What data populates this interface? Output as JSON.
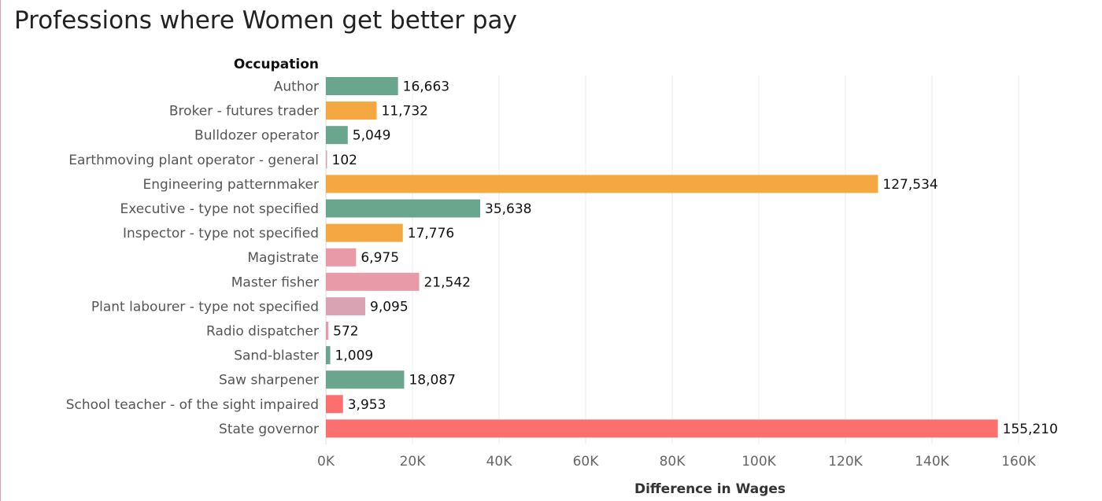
{
  "title": "Professions where Women get better pay",
  "chart_data": {
    "type": "bar",
    "orientation": "horizontal",
    "title": "Professions where Women get better pay",
    "ylabel": "Occupation",
    "xlabel": "Difference in Wages",
    "categories": [
      "Author",
      "Broker - futures trader",
      "Bulldozer operator",
      "Earthmoving plant operator - general",
      "Engineering patternmaker",
      "Executive - type not specified",
      "Inspector - type not specified",
      "Magistrate",
      "Master fisher",
      "Plant labourer - type not specified",
      "Radio dispatcher",
      "Sand-blaster",
      "Saw sharpener",
      "School teacher - of the sight impaired",
      "State governor"
    ],
    "values": [
      16663,
      11732,
      5049,
      102,
      127534,
      35638,
      17776,
      6975,
      21542,
      9095,
      572,
      1009,
      18087,
      3953,
      155210
    ],
    "value_labels": [
      "16,663",
      "11,732",
      "5,049",
      "102",
      "127,534",
      "35,638",
      "17,776",
      "6,975",
      "21,542",
      "9,095",
      "572",
      "1,009",
      "18,087",
      "3,953",
      "155,210"
    ],
    "colors": [
      "#6aa68e",
      "#f5a742",
      "#6aa68e",
      "#d9a3b3",
      "#f5a742",
      "#6aa68e",
      "#f5a742",
      "#e89aa8",
      "#e89aa8",
      "#d9a3b3",
      "#e89aa8",
      "#6aa68e",
      "#6aa68e",
      "#fc6f6f",
      "#fc6f6f"
    ],
    "xlim": [
      0,
      160000
    ],
    "xticks": [
      0,
      20000,
      40000,
      60000,
      80000,
      100000,
      120000,
      140000,
      160000
    ],
    "xtick_labels": [
      "0K",
      "20K",
      "40K",
      "60K",
      "80K",
      "100K",
      "120K",
      "140K",
      "160K"
    ],
    "grid": true,
    "legend": "none",
    "colors_meta": {
      "gridline": "#eeeeee",
      "axis_line": "#dddddd",
      "title_text": "#222222"
    }
  }
}
